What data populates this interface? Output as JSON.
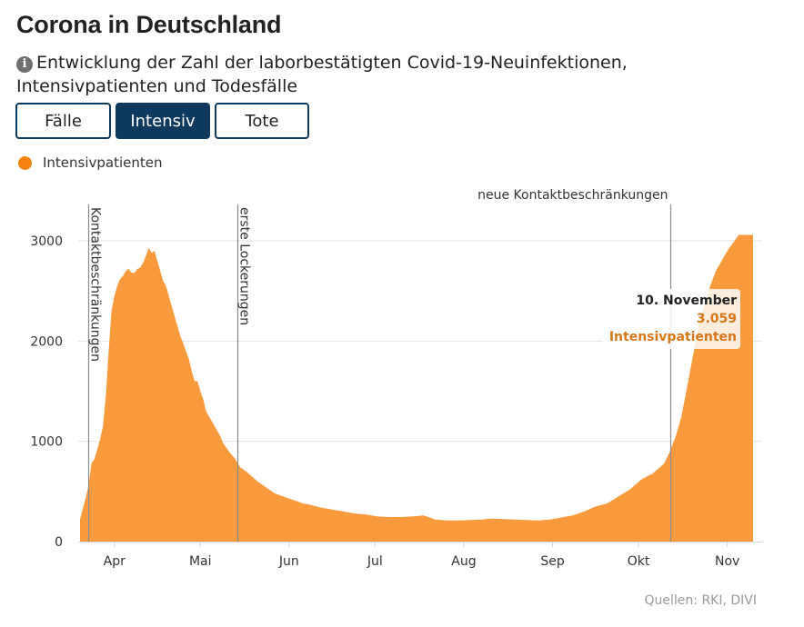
{
  "header": {
    "title": "Corona in Deutschland",
    "info_icon": "info-circle-icon",
    "subtitle": "Entwicklung der Zahl der laborbestätigten Covid-19-Neuinfektionen, Intensivpatienten und Todesfälle"
  },
  "tabs": [
    {
      "label": "Fälle",
      "active": false
    },
    {
      "label": "Intensiv",
      "active": true
    },
    {
      "label": "Tote",
      "active": false
    }
  ],
  "legend": {
    "label": "Intensivpatienten",
    "color": "#f7820f"
  },
  "tooltip": {
    "date": "10. November",
    "value": "3.059",
    "label": "Intensivpatienten"
  },
  "source": "Quellen: RKI, DIVI",
  "colors": {
    "area": "#f99b3d",
    "tab_active": "#0d3a5e",
    "tooltip_text": "#d9761a"
  },
  "chart_data": {
    "type": "area",
    "title": "Corona in Deutschland",
    "xlabel": "",
    "ylabel": "",
    "grid": true,
    "legend_position": "top-left",
    "ylim": [
      0,
      3300
    ],
    "yticks": [
      0,
      1000,
      2000,
      3000
    ],
    "ytick_labels": [
      "0",
      "1000",
      "2000",
      "3000"
    ],
    "xlim_days": [
      0,
      235
    ],
    "x_origin": "2020-03-20",
    "xticks": [
      {
        "label": "Apr",
        "day": 12
      },
      {
        "label": "Mai",
        "day": 42
      },
      {
        "label": "Jun",
        "day": 73
      },
      {
        "label": "Jul",
        "day": 103
      },
      {
        "label": "Aug",
        "day": 134
      },
      {
        "label": "Sep",
        "day": 165
      },
      {
        "label": "Okt",
        "day": 195
      },
      {
        "label": "Nov",
        "day": 226
      }
    ],
    "annotations": [
      {
        "label": "Kontaktbeschränkungen",
        "day": 3,
        "orientation": "vertical"
      },
      {
        "label": "erste Lockerungen",
        "day": 55,
        "orientation": "vertical"
      },
      {
        "label": "neue Kontaktbeschränkungen",
        "day": 206,
        "orientation": "horizontal"
      }
    ],
    "series": [
      {
        "name": "Intensivpatienten",
        "x_days": [
          0,
          1,
          2,
          3,
          4,
          5,
          6,
          7,
          8,
          9,
          10,
          11,
          12,
          13,
          14,
          15,
          16,
          17,
          18,
          19,
          20,
          21,
          22,
          23,
          24,
          25,
          26,
          27,
          28,
          29,
          30,
          31,
          32,
          33,
          34,
          35,
          36,
          37,
          38,
          39,
          40,
          41,
          42,
          43,
          44,
          45,
          46,
          47,
          48,
          49,
          50,
          52,
          54,
          56,
          58,
          60,
          62,
          64,
          66,
          68,
          70,
          72,
          74,
          76,
          78,
          80,
          84,
          88,
          92,
          96,
          100,
          104,
          108,
          112,
          116,
          120,
          124,
          128,
          132,
          136,
          140,
          144,
          148,
          152,
          156,
          160,
          164,
          168,
          172,
          176,
          180,
          184,
          188,
          192,
          196,
          200,
          204,
          206,
          208,
          210,
          212,
          214,
          216,
          218,
          220,
          222,
          224,
          226,
          228,
          230,
          232,
          235
        ],
        "values": [
          220,
          330,
          440,
          560,
          780,
          820,
          920,
          1020,
          1150,
          1450,
          1900,
          2300,
          2450,
          2550,
          2620,
          2650,
          2700,
          2720,
          2680,
          2680,
          2720,
          2730,
          2780,
          2850,
          2930,
          2880,
          2900,
          2800,
          2700,
          2600,
          2550,
          2450,
          2350,
          2250,
          2150,
          2050,
          1980,
          1900,
          1820,
          1700,
          1600,
          1600,
          1500,
          1420,
          1300,
          1250,
          1200,
          1150,
          1100,
          1050,
          980,
          900,
          830,
          740,
          700,
          650,
          600,
          560,
          520,
          480,
          460,
          440,
          420,
          400,
          380,
          370,
          340,
          320,
          300,
          280,
          270,
          250,
          245,
          245,
          250,
          260,
          220,
          210,
          210,
          215,
          220,
          230,
          225,
          220,
          215,
          210,
          220,
          240,
          260,
          300,
          350,
          380,
          450,
          520,
          620,
          680,
          780,
          900,
          1050,
          1250,
          1550,
          1850,
          2150,
          2350,
          2550,
          2700,
          2800,
          2900,
          2980,
          3059,
          3059,
          3059
        ]
      }
    ],
    "highlight_point": {
      "date": "10. November",
      "value": 3059,
      "series": "Intensivpatienten"
    }
  }
}
